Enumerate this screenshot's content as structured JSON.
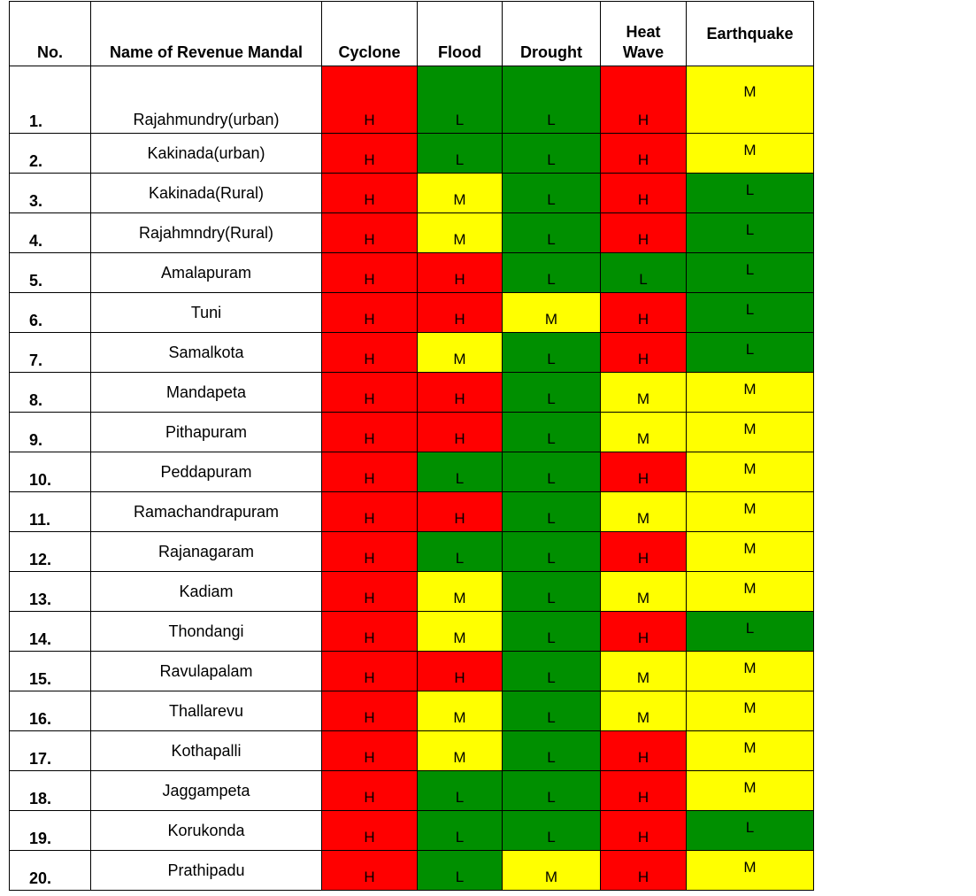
{
  "headers": {
    "no": "No.",
    "name": "Name of Revenue Mandal",
    "cyclone": "Cyclone",
    "flood": "Flood",
    "drought": "Drought",
    "heat_wave_1": "Heat",
    "heat_wave_2": "Wave",
    "earthquake": "Earthquake"
  },
  "level_colors": {
    "H": "#ff0000",
    "M": "#ffff00",
    "L": "#008f00"
  },
  "rows": [
    {
      "no": "1.",
      "name": "Rajahmundry(urban)",
      "cyclone": "H",
      "flood": "L",
      "drought": "L",
      "heat": "H",
      "quake": "M"
    },
    {
      "no": "2.",
      "name": "Kakinada(urban)",
      "cyclone": "H",
      "flood": "L",
      "drought": "L",
      "heat": "H",
      "quake": "M"
    },
    {
      "no": "3.",
      "name": "Kakinada(Rural)",
      "cyclone": "H",
      "flood": "M",
      "drought": "L",
      "heat": "H",
      "quake": "L"
    },
    {
      "no": "4.",
      "name": "Rajahmndry(Rural)",
      "cyclone": "H",
      "flood": "M",
      "drought": "L",
      "heat": "H",
      "quake": "L"
    },
    {
      "no": "5.",
      "name": "Amalapuram",
      "cyclone": "H",
      "flood": "H",
      "drought": "L",
      "heat": "L",
      "quake": "L"
    },
    {
      "no": "6.",
      "name": "Tuni",
      "cyclone": "H",
      "flood": "H",
      "drought": "M",
      "heat": "H",
      "quake": "L"
    },
    {
      "no": "7.",
      "name": "Samalkota",
      "cyclone": "H",
      "flood": "M",
      "drought": "L",
      "heat": "H",
      "quake": "L"
    },
    {
      "no": "8.",
      "name": "Mandapeta",
      "cyclone": "H",
      "flood": "H",
      "drought": "L",
      "heat": "M",
      "quake": "M"
    },
    {
      "no": "9.",
      "name": "Pithapuram",
      "cyclone": "H",
      "flood": "H",
      "drought": "L",
      "heat": "M",
      "quake": "M"
    },
    {
      "no": "10.",
      "name": "Peddapuram",
      "cyclone": "H",
      "flood": "L",
      "drought": "L",
      "heat": "H",
      "quake": "M"
    },
    {
      "no": "11.",
      "name": "Ramachandrapuram",
      "cyclone": "H",
      "flood": "H",
      "drought": "L",
      "heat": "M",
      "quake": "M"
    },
    {
      "no": "12.",
      "name": "Rajanagaram",
      "cyclone": "H",
      "flood": "L",
      "drought": "L",
      "heat": "H",
      "quake": "M"
    },
    {
      "no": "13.",
      "name": "Kadiam",
      "cyclone": "H",
      "flood": "M",
      "drought": "L",
      "heat": "M",
      "quake": "M"
    },
    {
      "no": "14.",
      "name": "Thondangi",
      "cyclone": "H",
      "flood": "M",
      "drought": "L",
      "heat": "H",
      "quake": "L"
    },
    {
      "no": "15.",
      "name": "Ravulapalam",
      "cyclone": "H",
      "flood": "H",
      "drought": "L",
      "heat": "M",
      "quake": "M"
    },
    {
      "no": "16.",
      "name": "Thallarevu",
      "cyclone": "H",
      "flood": "M",
      "drought": "L",
      "heat": "M",
      "quake": "M"
    },
    {
      "no": "17.",
      "name": "Kothapalli",
      "cyclone": "H",
      "flood": "M",
      "drought": "L",
      "heat": "H",
      "quake": "M"
    },
    {
      "no": "18.",
      "name": "Jaggampeta",
      "cyclone": "H",
      "flood": "L",
      "drought": "L",
      "heat": "H",
      "quake": "M"
    },
    {
      "no": "19.",
      "name": "Korukonda",
      "cyclone": "H",
      "flood": "L",
      "drought": "L",
      "heat": "H",
      "quake": "L"
    },
    {
      "no": "20.",
      "name": "Prathipadu",
      "cyclone": "H",
      "flood": "L",
      "drought": "M",
      "heat": "H",
      "quake": "M"
    }
  ]
}
